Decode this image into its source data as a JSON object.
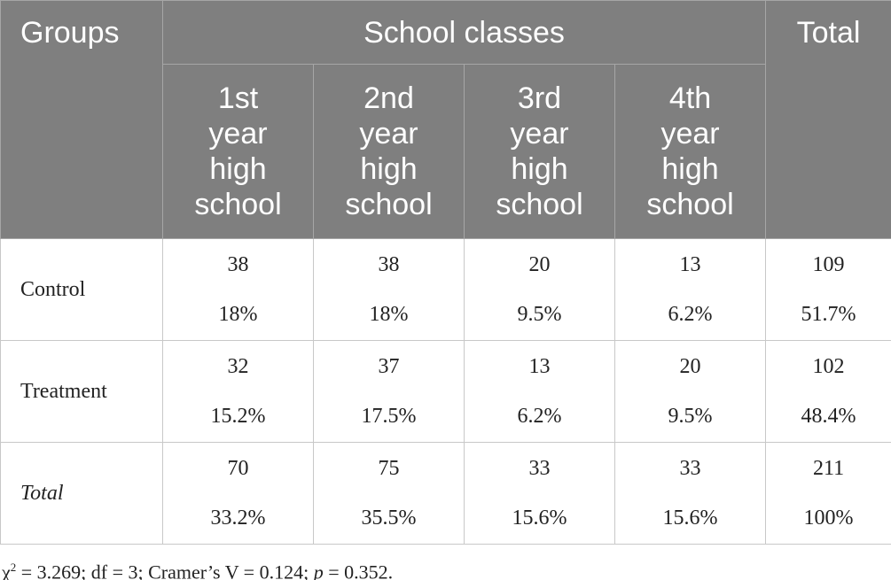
{
  "header": {
    "groups": "Groups",
    "span": "School classes",
    "total": "Total",
    "classes": [
      "1st year high school",
      "2nd year high school",
      "3rd year high school",
      "4th year high school"
    ]
  },
  "rows": [
    {
      "group": "Control",
      "cells": [
        [
          "38",
          "18%"
        ],
        [
          "38",
          "18%"
        ],
        [
          "20",
          "9.5%"
        ],
        [
          "13",
          "6.2%"
        ],
        [
          "109",
          "51.7%"
        ]
      ]
    },
    {
      "group": "Treatment",
      "cells": [
        [
          "32",
          "15.2%"
        ],
        [
          "37",
          "17.5%"
        ],
        [
          "13",
          "6.2%"
        ],
        [
          "20",
          "9.5%"
        ],
        [
          "102",
          "48.4%"
        ]
      ]
    },
    {
      "group": "Total",
      "cells": [
        [
          "70",
          "33.2%"
        ],
        [
          "75",
          "35.5%"
        ],
        [
          "33",
          "15.6%"
        ],
        [
          "33",
          "15.6%"
        ],
        [
          "211",
          "100%"
        ]
      ]
    }
  ],
  "footnote": [
    "χ",
    "2",
    " = 3.269; df = 3; Cramer’s V = 0.124; ",
    "p",
    " = 0.352."
  ]
}
